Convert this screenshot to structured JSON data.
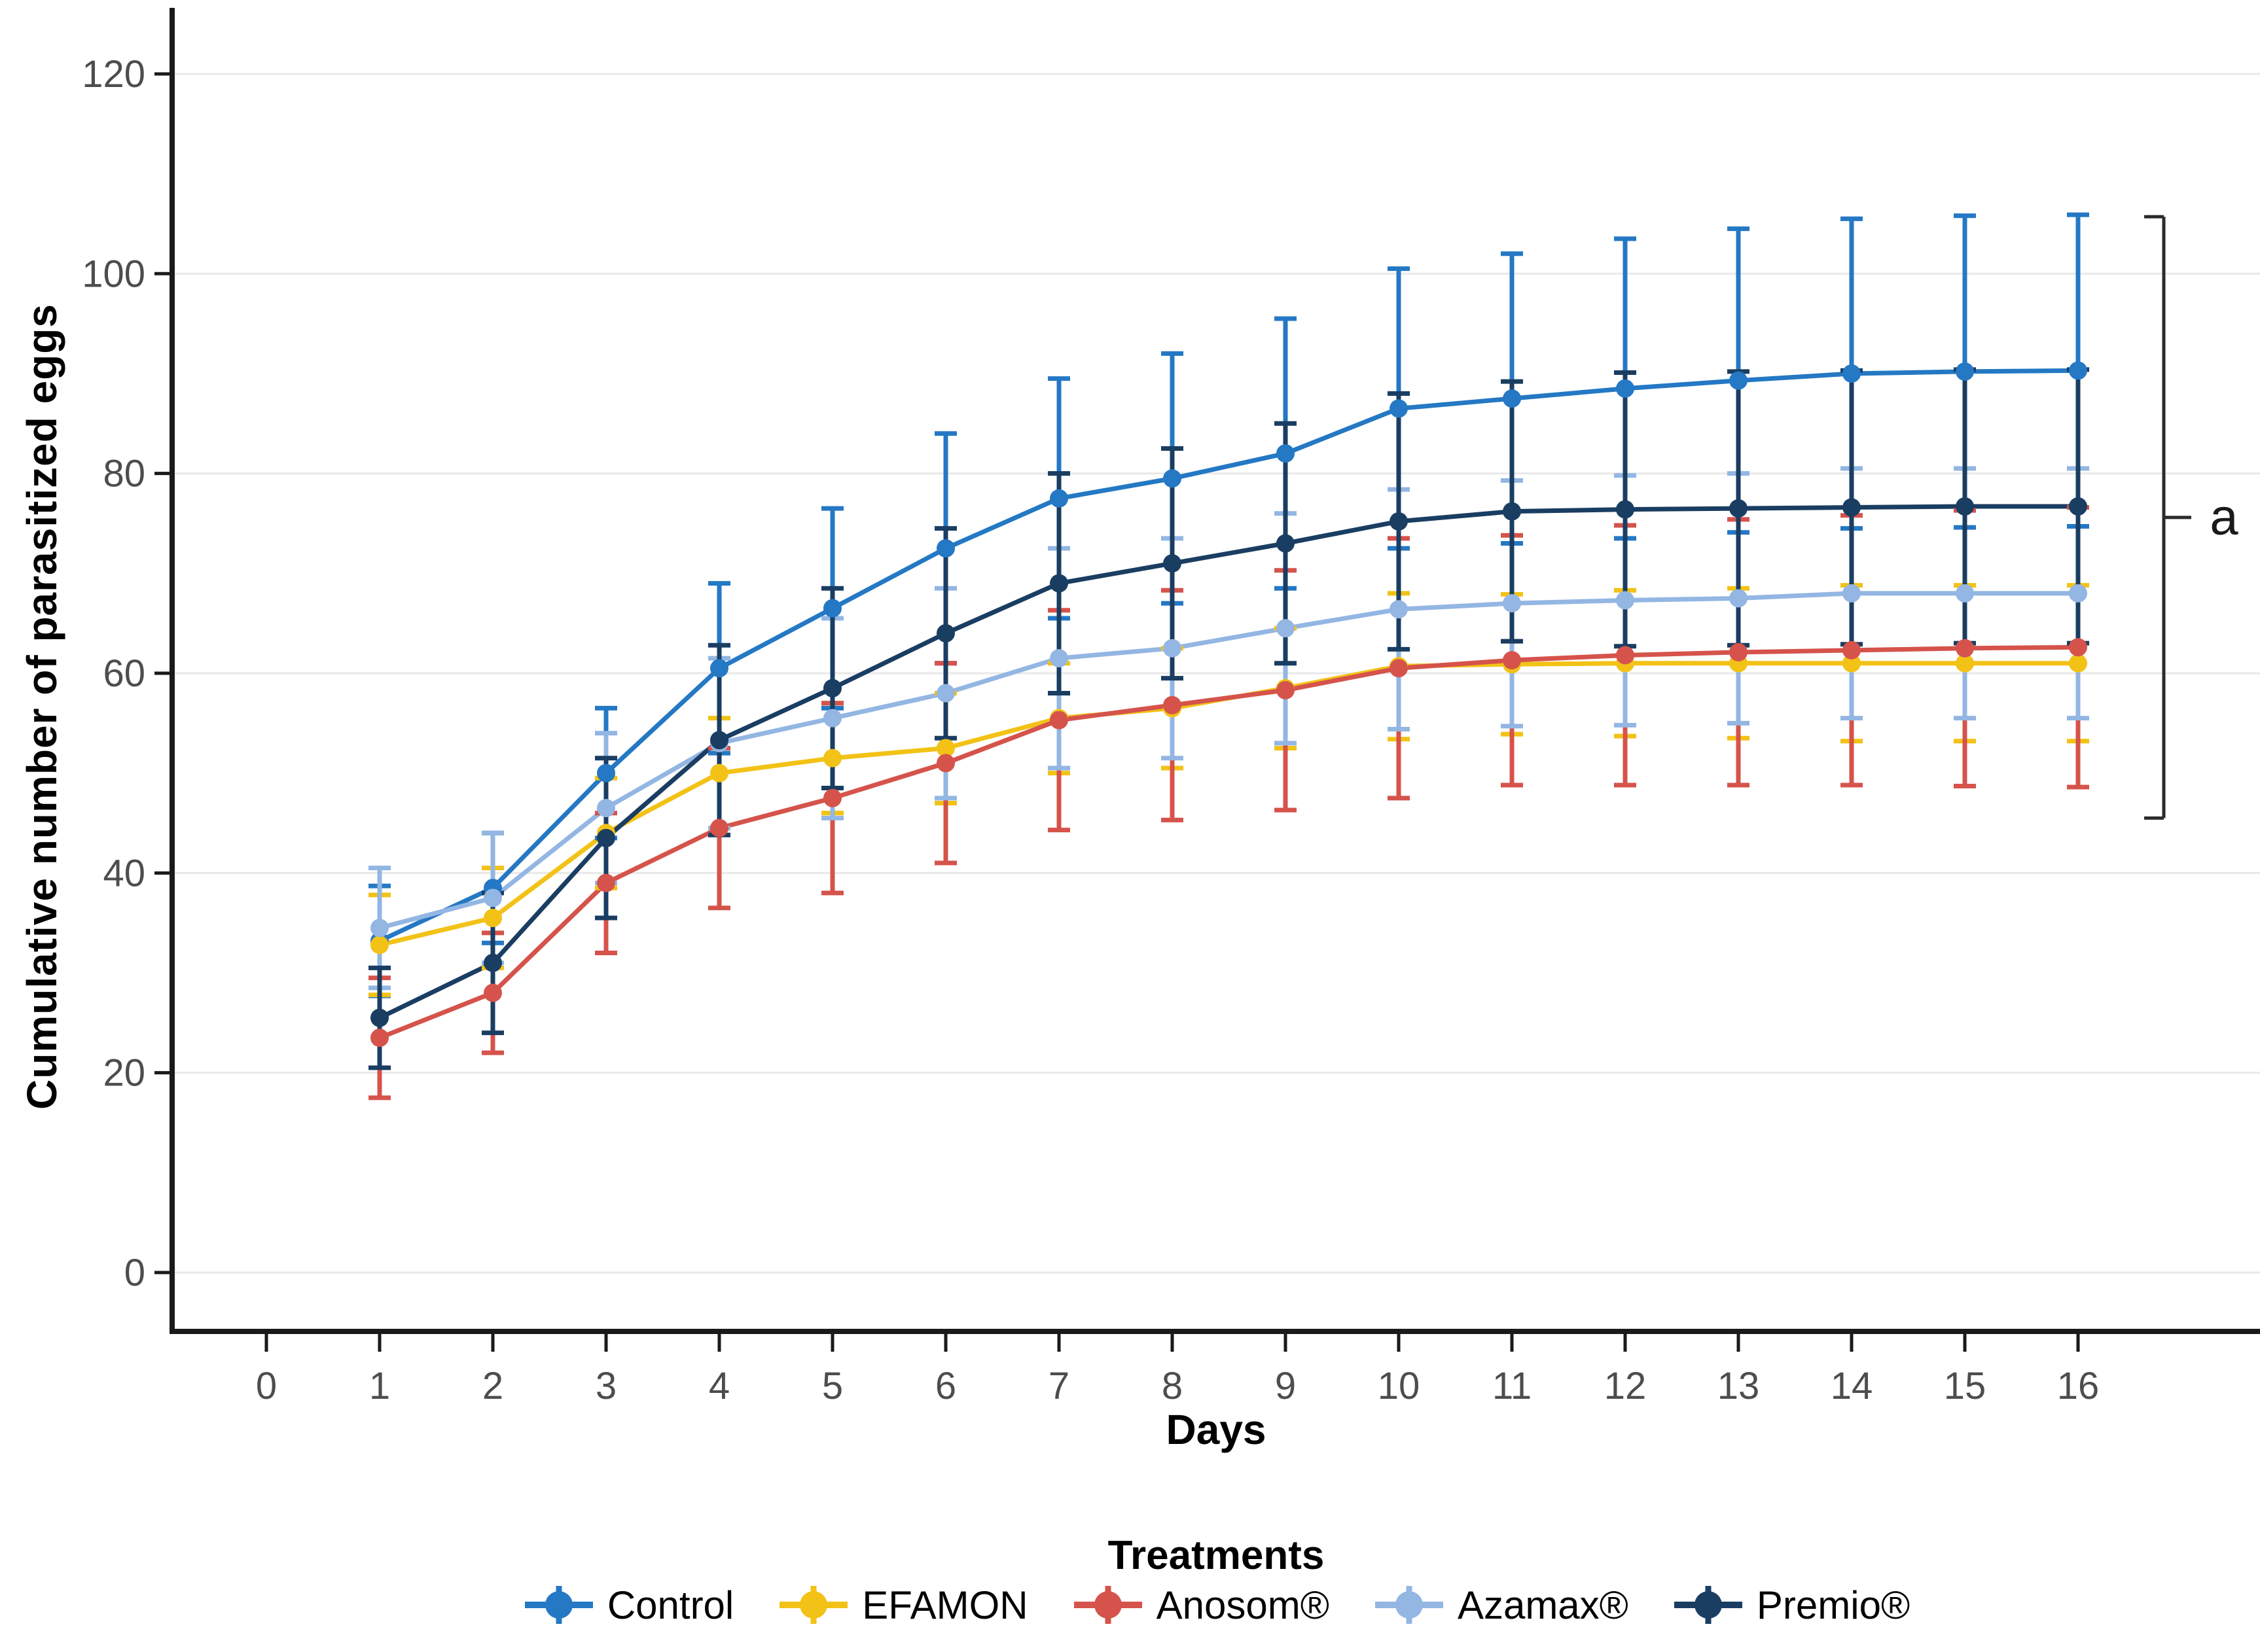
{
  "figure": {
    "y_axis_title": "Cumulative number of parasitized eggs",
    "x_axis_title": "Days",
    "legend_title": "Treatments",
    "annotation_label": "a"
  },
  "chart_data": {
    "type": "line",
    "title": "",
    "xlabel": "Days",
    "ylabel": "Cumulative number of parasitized eggs",
    "legend_position": "bottom",
    "grid": "horizontal",
    "xlim": [
      -0.85,
      17.6
    ],
    "ylim": [
      -6,
      126
    ],
    "x_ticks": [
      0,
      1,
      2,
      3,
      4,
      5,
      6,
      7,
      8,
      9,
      10,
      11,
      12,
      13,
      14,
      15,
      16
    ],
    "y_ticks": [
      0,
      20,
      40,
      60,
      80,
      100,
      120
    ],
    "x": [
      1,
      2,
      3,
      4,
      5,
      6,
      7,
      8,
      9,
      10,
      11,
      12,
      13,
      14,
      15,
      16
    ],
    "series": [
      {
        "name": "Control",
        "color": "#2478C4",
        "values": [
          33.2,
          38.5,
          50,
          60.5,
          66.5,
          72.5,
          77.5,
          79.5,
          82,
          86.5,
          87.5,
          88.5,
          89.3,
          90,
          90.2,
          90.3
        ],
        "err": [
          5.5,
          5.5,
          6.5,
          8.5,
          10,
          11.5,
          12,
          12.5,
          13.5,
          14,
          14.5,
          15,
          15.2,
          15.5,
          15.6,
          15.6
        ]
      },
      {
        "name": "EFAMON",
        "color": "#F2C216",
        "values": [
          32.8,
          35.5,
          44,
          50,
          51.5,
          52.5,
          55.5,
          56.5,
          58.5,
          60.7,
          60.9,
          61,
          61,
          61,
          61,
          61
        ],
        "err": [
          5,
          5,
          5.5,
          5.5,
          5.5,
          5.5,
          5.5,
          6,
          6,
          7.3,
          7,
          7.3,
          7.5,
          7.8,
          7.8,
          7.8
        ]
      },
      {
        "name": "Anosom®",
        "color": "#D5534B",
        "values": [
          23.5,
          28,
          39,
          44.5,
          47.5,
          51,
          55.3,
          56.8,
          58.3,
          60.5,
          61.3,
          61.8,
          62.1,
          62.3,
          62.5,
          62.6
        ],
        "err": [
          6,
          6,
          7,
          8,
          9.5,
          10,
          11,
          11.5,
          12,
          13,
          12.5,
          13,
          13.3,
          13.5,
          13.8,
          14
        ]
      },
      {
        "name": "Azamax®",
        "color": "#93B6E3",
        "values": [
          34.5,
          37.5,
          46.5,
          53,
          55.5,
          58,
          61.5,
          62.5,
          64.5,
          66.4,
          67,
          67.3,
          67.5,
          68,
          68,
          68
        ],
        "err": [
          6,
          6.5,
          7.5,
          8.5,
          10,
          10.5,
          11,
          11,
          11.5,
          12,
          12.3,
          12.5,
          12.5,
          12.5,
          12.5,
          12.5
        ]
      },
      {
        "name": "Premio®",
        "color": "#1A3D62",
        "values": [
          25.5,
          31,
          43.5,
          53.3,
          58.5,
          64,
          69,
          71,
          73,
          75.2,
          76.2,
          76.4,
          76.5,
          76.6,
          76.7,
          76.7
        ],
        "err": [
          5,
          7,
          8,
          9.5,
          10,
          10.5,
          11,
          11.5,
          12,
          12.8,
          13,
          13.7,
          13.7,
          13.7,
          13.7,
          13.7
        ]
      }
    ],
    "annotation": {
      "label": "a",
      "bracket_y_top": 105.7,
      "bracket_y_mid": 75.6,
      "bracket_y_bottom": 45.5
    },
    "style": {
      "axis_color": "#1a1a1a",
      "tick_label_color": "#4d4d4d",
      "gridline_color": "#e9e9e9",
      "background": "#ffffff"
    }
  }
}
